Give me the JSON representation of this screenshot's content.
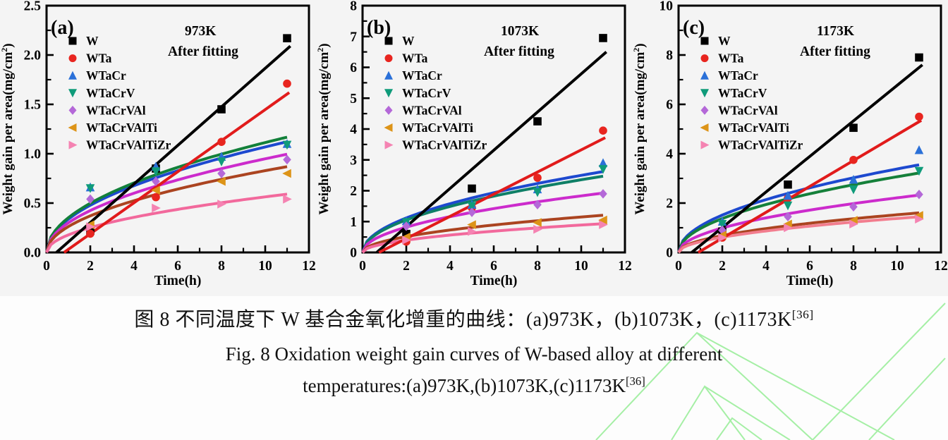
{
  "page": {
    "background": "#fdfdfd",
    "strip_background": "#f4f4f4",
    "axis_color": "#000000",
    "watermark_color": "#a5efa5"
  },
  "figure": {
    "xlabel": "Time(h)",
    "ylabel_main": "Weight gain per area(mg/cm",
    "ylabel_sup": "2",
    "ylabel_close": ")",
    "legend_labels": [
      "W",
      "WTa",
      "WTaCr",
      "WTaCrV",
      "WTaCrVAl",
      "WTaCrVAlTi",
      "WTaCrVAlTiZr"
    ]
  },
  "chart_data": [
    {
      "type": "scatter",
      "panel_label": "(a)",
      "temperature_label": "973K",
      "fit_label": "After fitting",
      "xlabel": "Time(h)",
      "ylabel": "Weight gain per area(mg/cm²)",
      "xlim": [
        0,
        12
      ],
      "ylim": [
        0,
        2.5
      ],
      "xticks": [
        0,
        2,
        4,
        6,
        8,
        10,
        12
      ],
      "xminor_step": 1,
      "yticks": [
        0,
        0.5,
        1,
        1.5,
        2,
        2.5
      ],
      "yminor_step": 0.25,
      "ytick_decimals": 1,
      "legend_position": "upper-left",
      "grid": false,
      "series": [
        {
          "name": "W",
          "marker": "square",
          "marker_color": "#000000",
          "line_color": "#000000",
          "fit": {
            "type": "linear",
            "x0": 0.45,
            "y0": 0,
            "x1": 11.15,
            "y1": 2.09
          },
          "points": [
            [
              2,
              0.22
            ],
            [
              5,
              0.85
            ],
            [
              8,
              1.45
            ],
            [
              11,
              2.17
            ]
          ]
        },
        {
          "name": "WTa",
          "marker": "circle",
          "marker_color": "#e8251f",
          "line_color": "#e11b1b",
          "fit": {
            "type": "linear",
            "x0": 0.8,
            "y0": 0,
            "x1": 11.1,
            "y1": 1.62
          },
          "points": [
            [
              2,
              0.19
            ],
            [
              5,
              0.56
            ],
            [
              8,
              1.12
            ],
            [
              11,
              1.71
            ]
          ]
        },
        {
          "name": "WTaCr",
          "marker": "triangle-up",
          "marker_color": "#2a70d8",
          "line_color": "#1d49cf",
          "fit": {
            "type": "power",
            "k": 0.338,
            "n": 0.5
          },
          "points": [
            [
              2,
              0.66
            ],
            [
              5,
              0.87
            ],
            [
              8,
              0.97
            ],
            [
              11,
              1.1
            ]
          ]
        },
        {
          "name": "WTaCrV",
          "marker": "triangle-down",
          "marker_color": "#0f9b7a",
          "line_color": "#12803a",
          "fit": {
            "type": "power",
            "k": 0.352,
            "n": 0.5
          },
          "points": [
            [
              2,
              0.65
            ],
            [
              5,
              0.82
            ],
            [
              8,
              0.92
            ],
            [
              11,
              1.09
            ]
          ]
        },
        {
          "name": "WTaCrVAl",
          "marker": "diamond",
          "marker_color": "#b468d8",
          "line_color": "#cc2bcc",
          "fit": {
            "type": "power",
            "k": 0.3,
            "n": 0.5
          },
          "points": [
            [
              2,
              0.54
            ],
            [
              5,
              0.72
            ],
            [
              8,
              0.8
            ],
            [
              11,
              0.94
            ]
          ]
        },
        {
          "name": "WTaCrVAlTi",
          "marker": "triangle-left",
          "marker_color": "#dd9418",
          "line_color": "#ab4420",
          "fit": {
            "type": "power",
            "k": 0.262,
            "n": 0.5
          },
          "points": [
            [
              2,
              0.28
            ],
            [
              5,
              0.63
            ],
            [
              8,
              0.72
            ],
            [
              11,
              0.8
            ]
          ]
        },
        {
          "name": "WTaCrVAlTiZr",
          "marker": "triangle-right",
          "marker_color": "#f583b2",
          "line_color": "#f2699c",
          "fit": {
            "type": "power",
            "k": 0.178,
            "n": 0.5
          },
          "points": [
            [
              2,
              0.26
            ],
            [
              5,
              0.45
            ],
            [
              8,
              0.49
            ],
            [
              11,
              0.54
            ]
          ]
        }
      ]
    },
    {
      "type": "scatter",
      "panel_label": "(b)",
      "temperature_label": "1073K",
      "fit_label": "After fitting",
      "xlabel": "Time(h)",
      "ylabel": "Weight gain per area(mg/cm²)",
      "xlim": [
        0,
        12
      ],
      "ylim": [
        0,
        8
      ],
      "xticks": [
        0,
        2,
        4,
        6,
        8,
        10,
        12
      ],
      "xminor_step": 1,
      "yticks": [
        0,
        1,
        2,
        3,
        4,
        5,
        6,
        7,
        8
      ],
      "yminor_step": 0.5,
      "ytick_decimals": 0,
      "legend_position": "upper-left",
      "grid": false,
      "series": [
        {
          "name": "W",
          "marker": "square",
          "marker_color": "#000000",
          "line_color": "#000000",
          "fit": {
            "type": "linear",
            "x0": 0.65,
            "y0": 0,
            "x1": 11.15,
            "y1": 6.5
          },
          "points": [
            [
              2,
              0.6
            ],
            [
              5,
              2.07
            ],
            [
              8,
              4.25
            ],
            [
              11,
              6.95
            ]
          ]
        },
        {
          "name": "WTa",
          "marker": "circle",
          "marker_color": "#e8251f",
          "line_color": "#e11b1b",
          "fit": {
            "type": "linear",
            "x0": 0.75,
            "y0": 0,
            "x1": 11.1,
            "y1": 3.72
          },
          "points": [
            [
              2,
              0.35
            ],
            [
              5,
              1.45
            ],
            [
              8,
              2.42
            ],
            [
              11,
              3.95
            ]
          ]
        },
        {
          "name": "WTaCr",
          "marker": "triangle-up",
          "marker_color": "#2a70d8",
          "line_color": "#1d49cf",
          "fit": {
            "type": "power",
            "k": 0.79,
            "n": 0.5
          },
          "points": [
            [
              2,
              1.02
            ],
            [
              5,
              1.55
            ],
            [
              8,
              2.05
            ],
            [
              11,
              2.9
            ]
          ]
        },
        {
          "name": "WTaCrV",
          "marker": "triangle-down",
          "marker_color": "#0f9b7a",
          "line_color": "#0e7f66",
          "fit": {
            "type": "power",
            "k": 0.745,
            "n": 0.5
          },
          "points": [
            [
              2,
              0.98
            ],
            [
              5,
              1.5
            ],
            [
              8,
              1.95
            ],
            [
              11,
              2.7
            ]
          ]
        },
        {
          "name": "WTaCrVAl",
          "marker": "diamond",
          "marker_color": "#b468d8",
          "line_color": "#cc2bcc",
          "fit": {
            "type": "power",
            "k": 0.58,
            "n": 0.5
          },
          "points": [
            [
              2,
              0.85
            ],
            [
              5,
              1.3
            ],
            [
              8,
              1.55
            ],
            [
              11,
              1.9
            ]
          ]
        },
        {
          "name": "WTaCrVAlTi",
          "marker": "triangle-left",
          "marker_color": "#dd9418",
          "line_color": "#ab4420",
          "fit": {
            "type": "power",
            "k": 0.363,
            "n": 0.5
          },
          "points": [
            [
              2,
              0.5
            ],
            [
              5,
              0.9
            ],
            [
              8,
              0.97
            ],
            [
              11,
              1.05
            ]
          ]
        },
        {
          "name": "WTaCrVAlTiZr",
          "marker": "triangle-right",
          "marker_color": "#f583b2",
          "line_color": "#f2699c",
          "fit": {
            "type": "power",
            "k": 0.281,
            "n": 0.5
          },
          "points": [
            [
              2,
              0.4
            ],
            [
              5,
              0.68
            ],
            [
              8,
              0.75
            ],
            [
              11,
              0.9
            ]
          ]
        }
      ]
    },
    {
      "type": "scatter",
      "panel_label": "(c)",
      "temperature_label": "1173K",
      "fit_label": "After fitting",
      "xlabel": "Time(h)",
      "ylabel": "Weight gain per area(mg/cm²)",
      "xlim": [
        0,
        12
      ],
      "ylim": [
        0,
        10
      ],
      "xticks": [
        0,
        2,
        4,
        6,
        8,
        10,
        12
      ],
      "xminor_step": 1,
      "yticks": [
        0,
        2,
        4,
        6,
        8,
        10
      ],
      "yminor_step": 1,
      "ytick_decimals": 0,
      "legend_position": "upper-left",
      "grid": false,
      "series": [
        {
          "name": "W",
          "marker": "square",
          "marker_color": "#000000",
          "line_color": "#000000",
          "fit": {
            "type": "linear",
            "x0": 0.6,
            "y0": 0,
            "x1": 11.15,
            "y1": 7.6
          },
          "points": [
            [
              2,
              0.85
            ],
            [
              5,
              2.75
            ],
            [
              8,
              5.05
            ],
            [
              11,
              7.9
            ]
          ]
        },
        {
          "name": "WTa",
          "marker": "circle",
          "marker_color": "#e8251f",
          "line_color": "#e11b1b",
          "fit": {
            "type": "linear",
            "x0": 0.9,
            "y0": 0,
            "x1": 11.1,
            "y1": 5.35
          },
          "points": [
            [
              2,
              0.6
            ],
            [
              5,
              2.2
            ],
            [
              8,
              3.75
            ],
            [
              11,
              5.5
            ]
          ]
        },
        {
          "name": "WTaCr",
          "marker": "triangle-up",
          "marker_color": "#2a70d8",
          "line_color": "#1d49cf",
          "fit": {
            "type": "power",
            "k": 1.07,
            "n": 0.5
          },
          "points": [
            [
              2,
              1.25
            ],
            [
              5,
              2.3
            ],
            [
              8,
              2.95
            ],
            [
              11,
              4.15
            ]
          ]
        },
        {
          "name": "WTaCrV",
          "marker": "triangle-down",
          "marker_color": "#0f9b7a",
          "line_color": "#15803a",
          "fit": {
            "type": "power",
            "k": 0.97,
            "n": 0.5
          },
          "points": [
            [
              2,
              1.15
            ],
            [
              5,
              1.9
            ],
            [
              8,
              2.55
            ],
            [
              11,
              3.3
            ]
          ]
        },
        {
          "name": "WTaCrVAl",
          "marker": "diamond",
          "marker_color": "#b468d8",
          "line_color": "#cc2bcc",
          "fit": {
            "type": "power",
            "k": 0.7,
            "n": 0.5
          },
          "points": [
            [
              2,
              0.9
            ],
            [
              5,
              1.45
            ],
            [
              8,
              1.85
            ],
            [
              11,
              2.35
            ]
          ]
        },
        {
          "name": "WTaCrVAlTi",
          "marker": "triangle-left",
          "marker_color": "#dd9418",
          "line_color": "#ab4420",
          "fit": {
            "type": "power",
            "k": 0.483,
            "n": 0.5
          },
          "points": [
            [
              2,
              0.7
            ],
            [
              5,
              1.15
            ],
            [
              8,
              1.3
            ],
            [
              11,
              1.5
            ]
          ]
        },
        {
          "name": "WTaCrVAlTiZr",
          "marker": "triangle-right",
          "marker_color": "#f583b2",
          "line_color": "#f27d8e",
          "fit": {
            "type": "power",
            "k": 0.435,
            "n": 0.5
          },
          "points": [
            [
              2,
              0.6
            ],
            [
              5,
              1.0
            ],
            [
              8,
              1.15
            ],
            [
              11,
              1.35
            ]
          ]
        }
      ]
    }
  ],
  "caption": {
    "zh_text": "图 8 不同温度下 W 基合金氧化增重的曲线：(a)973K，(b)1073K，(c)1173K",
    "zh_ref": "[36]",
    "en_line1": "Fig. 8 Oxidation weight gain curves of W-based alloy at different",
    "en_line2": "temperatures:(a)973K,(b)1073K,(c)1173K",
    "en_ref": "[36]"
  }
}
